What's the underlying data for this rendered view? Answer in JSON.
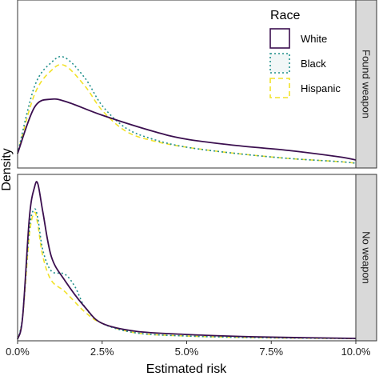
{
  "chart_data": {
    "type": "line",
    "chart_kind": "faceted density plot",
    "xlabel": "Estimated risk",
    "ylabel": "Density",
    "xlim": [
      0,
      10
    ],
    "x_unit": "%",
    "x_ticks": [
      "0.0%",
      "2.5%",
      "5.0%",
      "7.5%",
      "10.0%"
    ],
    "legend": {
      "title": "Race",
      "position": "top-right",
      "entries": [
        "White",
        "Black",
        "Hispanic"
      ]
    },
    "series_styles": [
      {
        "name": "White",
        "color": "#3b0f4f",
        "dash": "solid"
      },
      {
        "name": "Black",
        "color": "#21908c",
        "dash": "dotted"
      },
      {
        "name": "Hispanic",
        "color": "#f2e22a",
        "dash": "dashed"
      }
    ],
    "facets": [
      {
        "label": "Found weapon",
        "ylim": [
          0,
          1
        ],
        "series": [
          {
            "name": "White",
            "x": [
              0,
              0.5,
              1.0,
              1.5,
              2.5,
              4.0,
              5.0,
              6.5,
              8.0,
              9.5,
              10.0
            ],
            "values": [
              0.08,
              0.37,
              0.42,
              0.4,
              0.32,
              0.22,
              0.17,
              0.13,
              0.1,
              0.06,
              0.04
            ]
          },
          {
            "name": "Black",
            "x": [
              0,
              0.5,
              1.0,
              1.4,
              2.0,
              2.5,
              3.2,
              4.0,
              5.0,
              6.5,
              8.0,
              9.5,
              10.0
            ],
            "values": [
              0.08,
              0.5,
              0.65,
              0.68,
              0.55,
              0.38,
              0.24,
              0.17,
              0.12,
              0.08,
              0.05,
              0.03,
              0.02
            ]
          },
          {
            "name": "Hispanic",
            "x": [
              0,
              0.5,
              1.0,
              1.4,
              2.0,
              2.5,
              3.2,
              4.0,
              5.0,
              6.5,
              8.0,
              9.5,
              10.0
            ],
            "values": [
              0.08,
              0.45,
              0.6,
              0.63,
              0.5,
              0.35,
              0.22,
              0.16,
              0.12,
              0.08,
              0.05,
              0.03,
              0.02
            ]
          }
        ]
      },
      {
        "label": "No weapon",
        "ylim": [
          0,
          1
        ],
        "series": [
          {
            "name": "White",
            "x": [
              0,
              0.15,
              0.35,
              0.5,
              0.6,
              0.75,
              1.0,
              1.4,
              2.0,
              2.5,
              3.5,
              5.0,
              7.0,
              10.0
            ],
            "values": [
              0.0,
              0.14,
              0.77,
              0.96,
              0.98,
              0.8,
              0.52,
              0.37,
              0.2,
              0.1,
              0.05,
              0.03,
              0.015,
              0.005
            ]
          },
          {
            "name": "Black",
            "x": [
              0,
              0.15,
              0.35,
              0.5,
              0.6,
              0.75,
              1.0,
              1.4,
              1.7,
              2.0,
              2.5,
              3.5,
              5.0,
              7.0,
              10.0
            ],
            "values": [
              0.0,
              0.15,
              0.7,
              0.82,
              0.76,
              0.56,
              0.43,
              0.41,
              0.33,
              0.2,
              0.1,
              0.04,
              0.02,
              0.01,
              0.004
            ]
          },
          {
            "name": "Hispanic",
            "x": [
              0,
              0.15,
              0.35,
              0.5,
              0.6,
              0.75,
              1.0,
              1.4,
              2.0,
              2.5,
              3.5,
              5.0,
              7.0,
              10.0
            ],
            "values": [
              0.0,
              0.14,
              0.66,
              0.8,
              0.72,
              0.52,
              0.37,
              0.3,
              0.17,
              0.1,
              0.04,
              0.02,
              0.01,
              0.004
            ]
          }
        ]
      }
    ]
  }
}
